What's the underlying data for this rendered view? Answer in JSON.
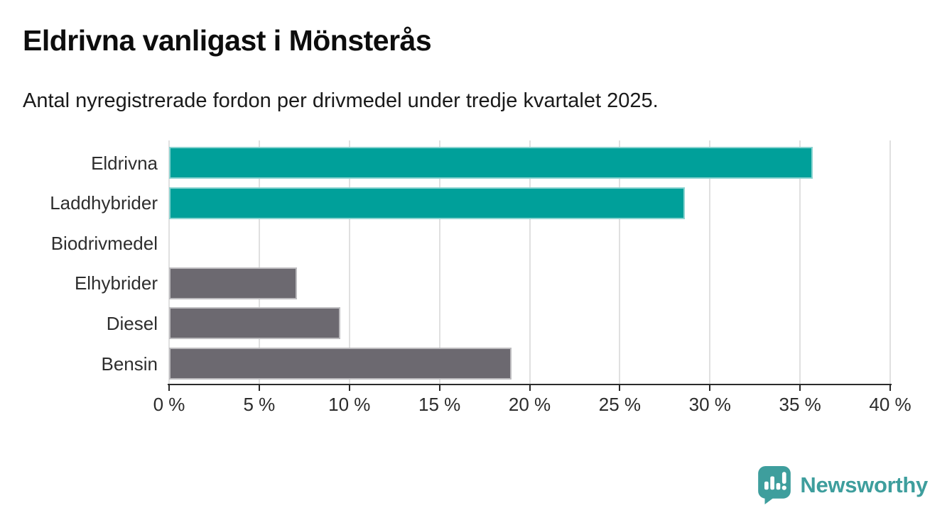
{
  "title": "Eldrivna vanligast i Mönsterås",
  "subtitle": "Antal nyregistrerade fordon per drivmedel under tredje kvartalet 2025.",
  "chart_data": {
    "type": "bar",
    "orientation": "horizontal",
    "title": "Eldrivna vanligast i Mönsterås",
    "subtitle": "Antal nyregistrerade fordon per drivmedel under tredje kvartalet 2025.",
    "categories": [
      "Eldrivna",
      "Laddhybrider",
      "Biodrivmedel",
      "Elhybrider",
      "Diesel",
      "Bensin"
    ],
    "values": [
      35.7,
      28.6,
      0,
      7.1,
      9.5,
      19.0
    ],
    "unit": "%",
    "xlim": [
      0,
      40
    ],
    "x_tick_step": 5,
    "x_tick_labels": [
      "0 %",
      "5 %",
      "10 %",
      "15 %",
      "20 %",
      "25 %",
      "30 %",
      "35 %",
      "40 %"
    ],
    "grid": "vertical",
    "legend": "none",
    "bar_colors": [
      "#00a09a",
      "#00a09a",
      "#00a09a",
      "#6c6970",
      "#6c6970",
      "#6c6970"
    ],
    "highlight_color": "#00a09a",
    "default_color": "#6c6970"
  },
  "colors": {
    "background": "#ffffff",
    "title_text": "#0d0d0d",
    "subtitle_text": "#1a1a1a",
    "axis_line": "#2b2b2b",
    "tick_text": "#2b2b2b",
    "category_text": "#2e2e2e",
    "gridline": "#e0e0e0",
    "brand_teal": "#3e9e9d"
  },
  "footer": {
    "brand_label": "Newsworthy",
    "logo_icon": "newsworthy-speech-bubble-bar-chart-icon"
  }
}
